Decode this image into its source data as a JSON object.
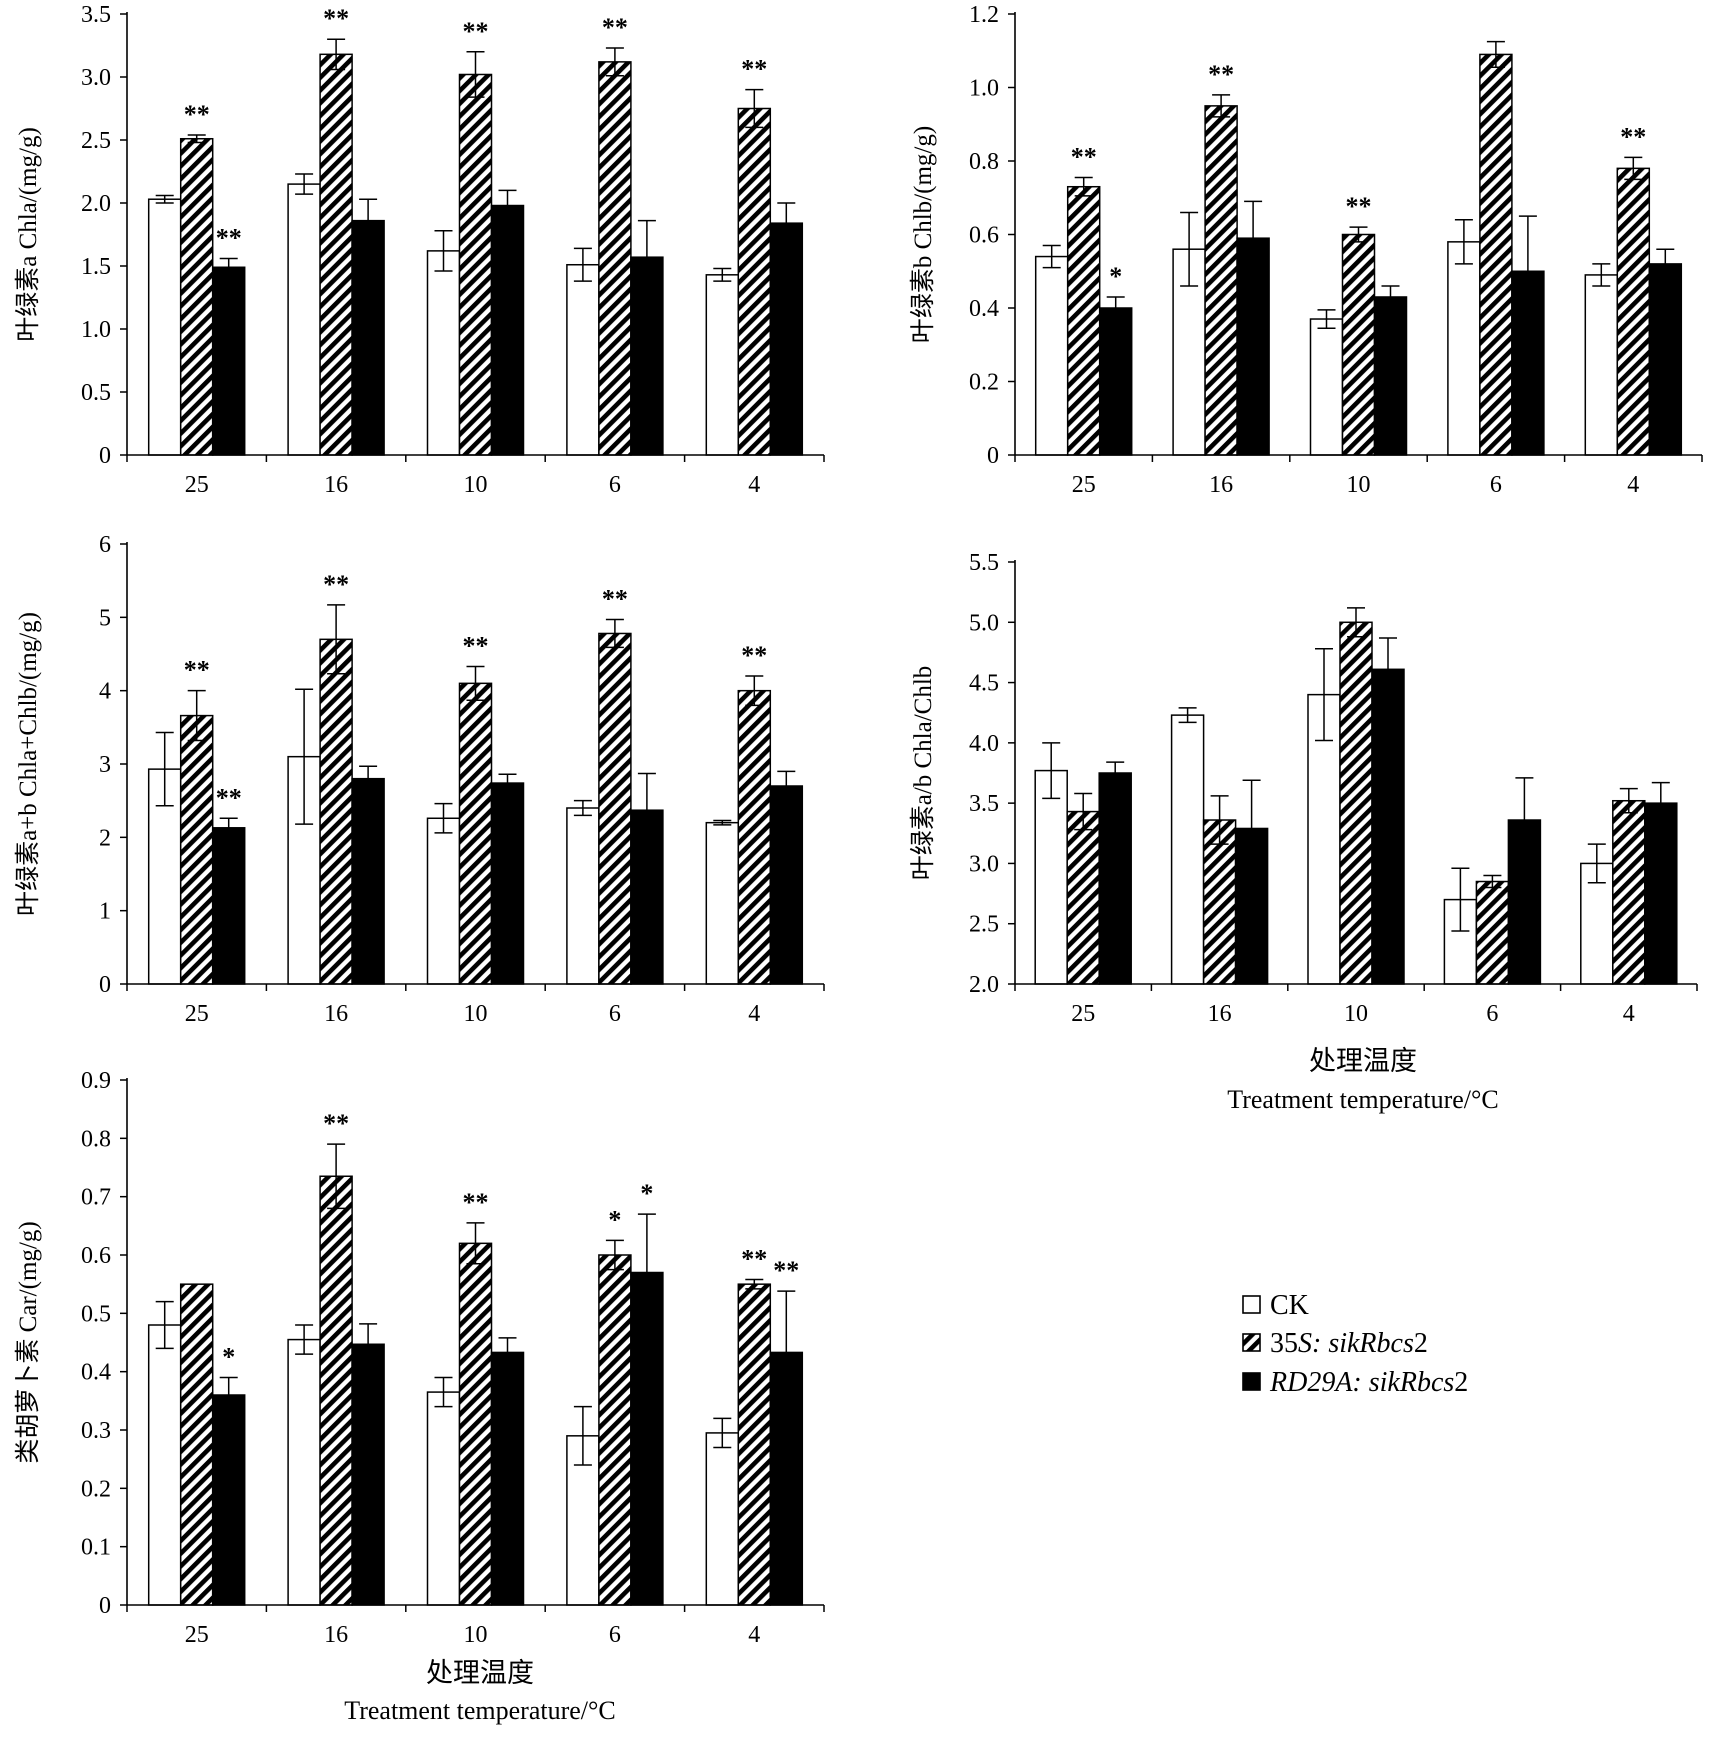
{
  "legend": [
    {
      "key": "ck",
      "label": "CK",
      "italic": ""
    },
    {
      "key": "s35",
      "label": "35",
      "italic": "S: sikRbcs",
      "suffix": "2"
    },
    {
      "key": "rd",
      "label": "",
      "italic": "RD29A: sikRbcs",
      "suffix": "2"
    }
  ],
  "xaxis_title_cn": "处理温度",
  "xaxis_title_en": "Treatment temperature/°C",
  "colors": {
    "ck": "#ffffff",
    "rd": "#000000",
    "stroke": "#000000"
  },
  "chart_data": [
    {
      "type": "bar",
      "categories": [
        "25",
        "16",
        "10",
        "6",
        "4"
      ],
      "ylabel": "叶绿素a Chla/(mg/g)",
      "ylim": [
        0,
        3.5
      ],
      "yticks": [
        "0",
        "0.5",
        "1.0",
        "1.5",
        "2.0",
        "2.5",
        "3.0",
        "3.5"
      ],
      "series": [
        {
          "name": "CK",
          "values": [
            2.03,
            2.15,
            1.62,
            1.51,
            1.43
          ],
          "errors": [
            0.03,
            0.08,
            0.16,
            0.13,
            0.05
          ],
          "sig": [
            "",
            "",
            "",
            "",
            ""
          ]
        },
        {
          "name": "35S: sikRbcs2",
          "values": [
            2.51,
            3.18,
            3.02,
            3.12,
            2.75
          ],
          "errors": [
            0.03,
            0.12,
            0.18,
            0.11,
            0.15
          ],
          "sig": [
            "**",
            "**",
            "**",
            "**",
            "**"
          ]
        },
        {
          "name": "RD29A: sikRbcs2",
          "values": [
            1.49,
            1.86,
            1.98,
            1.57,
            1.84
          ],
          "errors": [
            0.07,
            0.17,
            0.12,
            0.29,
            0.16
          ],
          "sig": [
            "**",
            "",
            "",
            "",
            ""
          ]
        }
      ]
    },
    {
      "type": "bar",
      "categories": [
        "25",
        "16",
        "10",
        "6",
        "4"
      ],
      "ylabel": "叶绿素b Chlb/(mg/g)",
      "ylim": [
        0,
        1.2
      ],
      "yticks": [
        "0",
        "0.2",
        "0.4",
        "0.6",
        "0.8",
        "1.0",
        "1.2"
      ],
      "series": [
        {
          "name": "CK",
          "values": [
            0.54,
            0.56,
            0.37,
            0.58,
            0.49
          ],
          "errors": [
            0.03,
            0.1,
            0.025,
            0.06,
            0.03
          ],
          "sig": [
            "",
            "",
            "",
            "",
            ""
          ]
        },
        {
          "name": "35S: sikRbcs2",
          "values": [
            0.73,
            0.95,
            0.6,
            1.09,
            0.78
          ],
          "errors": [
            0.025,
            0.03,
            0.02,
            0.035,
            0.03
          ],
          "sig": [
            "**",
            "**",
            "**",
            "",
            "**"
          ]
        },
        {
          "name": "RD29A: sikRbcs2",
          "values": [
            0.4,
            0.59,
            0.43,
            0.5,
            0.52
          ],
          "errors": [
            0.03,
            0.1,
            0.03,
            0.15,
            0.04
          ],
          "sig": [
            "*",
            "",
            "",
            "",
            ""
          ]
        }
      ]
    },
    {
      "type": "bar",
      "categories": [
        "25",
        "16",
        "10",
        "6",
        "4"
      ],
      "ylabel": "叶绿素a+b Chla+Chlb/(mg/g)",
      "ylim": [
        0,
        6
      ],
      "yticks": [
        "0",
        "1",
        "2",
        "3",
        "4",
        "5",
        "6"
      ],
      "series": [
        {
          "name": "CK",
          "values": [
            2.93,
            3.1,
            2.26,
            2.4,
            2.2
          ],
          "errors": [
            0.5,
            0.92,
            0.2,
            0.1,
            0.03
          ],
          "sig": [
            "",
            "",
            "",
            "",
            ""
          ]
        },
        {
          "name": "35S: sikRbcs2",
          "values": [
            3.66,
            4.7,
            4.1,
            4.78,
            4.0
          ],
          "errors": [
            0.34,
            0.47,
            0.23,
            0.19,
            0.2
          ],
          "sig": [
            "**",
            "**",
            "**",
            "**",
            "**"
          ]
        },
        {
          "name": "RD29A: sikRbcs2",
          "values": [
            2.13,
            2.8,
            2.74,
            2.37,
            2.7
          ],
          "errors": [
            0.13,
            0.17,
            0.12,
            0.5,
            0.2
          ],
          "sig": [
            "**",
            "",
            "",
            "",
            ""
          ]
        }
      ]
    },
    {
      "type": "bar",
      "categories": [
        "25",
        "16",
        "10",
        "6",
        "4"
      ],
      "ylabel": "叶绿素a/b Chla/Chlb",
      "ylim": [
        2.0,
        5.5
      ],
      "yticks": [
        "2.0",
        "2.5",
        "3.0",
        "3.5",
        "4.0",
        "4.5",
        "5.0",
        "5.5"
      ],
      "series": [
        {
          "name": "CK",
          "values": [
            3.77,
            4.23,
            4.4,
            2.7,
            3.0
          ],
          "errors": [
            0.23,
            0.06,
            0.38,
            0.26,
            0.16
          ],
          "sig": [
            "",
            "",
            "",
            "",
            ""
          ]
        },
        {
          "name": "35S: sikRbcs2",
          "values": [
            3.43,
            3.36,
            5.0,
            2.85,
            3.52
          ],
          "errors": [
            0.15,
            0.2,
            0.12,
            0.05,
            0.1
          ],
          "sig": [
            "",
            "",
            "",
            "",
            ""
          ]
        },
        {
          "name": "RD29A: sikRbcs2",
          "values": [
            3.75,
            3.29,
            4.61,
            3.36,
            3.5
          ],
          "errors": [
            0.09,
            0.4,
            0.26,
            0.35,
            0.17
          ],
          "sig": [
            "",
            "",
            "",
            "",
            ""
          ]
        }
      ]
    },
    {
      "type": "bar",
      "categories": [
        "25",
        "16",
        "10",
        "6",
        "4"
      ],
      "ylabel": "类胡萝卜素 Car/(mg/g)",
      "ylim": [
        0,
        0.9
      ],
      "yticks": [
        "0",
        "0.1",
        "0.2",
        "0.3",
        "0.4",
        "0.5",
        "0.6",
        "0.7",
        "0.8",
        "0.9"
      ],
      "series": [
        {
          "name": "CK",
          "values": [
            0.48,
            0.455,
            0.365,
            0.29,
            0.295
          ],
          "errors": [
            0.04,
            0.025,
            0.025,
            0.05,
            0.025
          ],
          "sig": [
            "",
            "",
            "",
            "",
            ""
          ]
        },
        {
          "name": "35S: sikRbcs2",
          "values": [
            0.55,
            0.735,
            0.62,
            0.6,
            0.55
          ],
          "errors": [
            0.0,
            0.055,
            0.035,
            0.025,
            0.008
          ],
          "sig": [
            "",
            "**",
            "**",
            "*",
            "**"
          ]
        },
        {
          "name": "RD29A: sikRbcs2",
          "values": [
            0.36,
            0.447,
            0.433,
            0.57,
            0.433
          ],
          "errors": [
            0.03,
            0.035,
            0.025,
            0.1,
            0.105
          ],
          "sig": [
            "*",
            "",
            "",
            "*",
            "**"
          ]
        }
      ]
    }
  ]
}
